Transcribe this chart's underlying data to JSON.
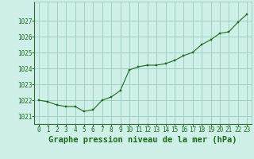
{
  "x": [
    0,
    1,
    2,
    3,
    4,
    5,
    6,
    7,
    8,
    9,
    10,
    11,
    12,
    13,
    14,
    15,
    16,
    17,
    18,
    19,
    20,
    21,
    22,
    23
  ],
  "y": [
    1022.0,
    1021.9,
    1021.7,
    1021.6,
    1021.6,
    1021.3,
    1021.4,
    1022.0,
    1022.2,
    1022.6,
    1023.9,
    1024.1,
    1024.2,
    1024.2,
    1024.3,
    1024.5,
    1024.8,
    1025.0,
    1025.5,
    1025.8,
    1026.2,
    1026.3,
    1026.9,
    1027.4
  ],
  "line_color": "#1a6b1a",
  "marker_color": "#1a6b1a",
  "bg_color": "#cff0e8",
  "grid_color": "#99ccbb",
  "xlabel": "Graphe pression niveau de la mer (hPa)",
  "xlabel_color": "#1a6b1a",
  "ylim_min": 1020.5,
  "ylim_max": 1028.2,
  "xlim_min": -0.5,
  "xlim_max": 23.5,
  "yticks": [
    1021,
    1022,
    1023,
    1024,
    1025,
    1026,
    1027
  ],
  "xticks": [
    0,
    1,
    2,
    3,
    4,
    5,
    6,
    7,
    8,
    9,
    10,
    11,
    12,
    13,
    14,
    15,
    16,
    17,
    18,
    19,
    20,
    21,
    22,
    23
  ],
  "tick_color": "#1a6b1a",
  "tick_fontsize": 5.5,
  "xlabel_fontsize": 7.5,
  "spine_color": "#336633"
}
